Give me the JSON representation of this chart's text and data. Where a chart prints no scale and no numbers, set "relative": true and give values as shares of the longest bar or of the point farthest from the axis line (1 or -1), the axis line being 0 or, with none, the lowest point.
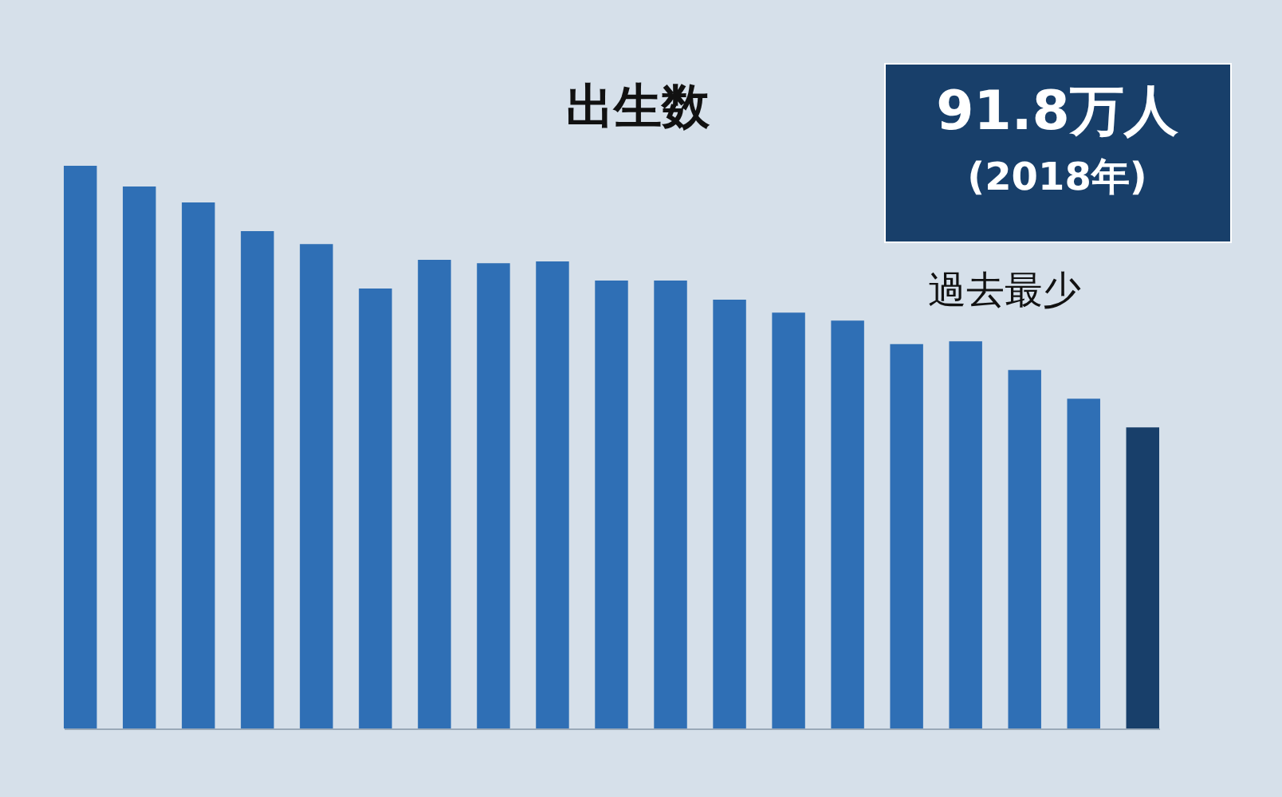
{
  "chart_data": {
    "type": "bar",
    "relative": true,
    "title": "出生数",
    "categories": [
      null,
      null,
      null,
      null,
      null,
      null,
      null,
      null,
      null,
      null,
      null,
      null,
      null,
      null,
      null,
      null,
      null,
      null,
      null
    ],
    "values": [
      1,
      0.963,
      0.935,
      0.884,
      0.861,
      0.782,
      0.833,
      0.827,
      0.83,
      0.796,
      0.796,
      0.762,
      0.739,
      0.725,
      0.683,
      0.688,
      0.637,
      0.586,
      0.535
    ],
    "colors": [
      "#2f6fb5",
      "#2f6fb5",
      "#2f6fb5",
      "#2f6fb5",
      "#2f6fb5",
      "#2f6fb5",
      "#2f6fb5",
      "#2f6fb5",
      "#2f6fb5",
      "#2f6fb5",
      "#2f6fb5",
      "#2f6fb5",
      "#2f6fb5",
      "#2f6fb5",
      "#2f6fb5",
      "#2f6fb5",
      "#2f6fb5",
      "#2f6fb5",
      "#183f6a"
    ],
    "annotations": [
      "91.8万人",
      "(2018年)",
      "過去最少"
    ],
    "grid": false
  }
}
